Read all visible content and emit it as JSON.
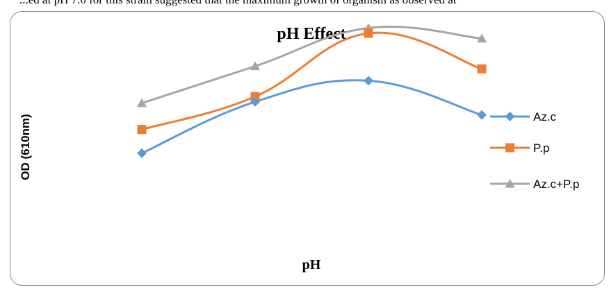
{
  "cut_text": "...ed at pH 7.0 for this strain suggested that the maximum growth of organism as observed at",
  "chart_data": {
    "type": "line",
    "title": "pH Effect",
    "xlabel": "pH",
    "ylabel": "OD (610nm)",
    "categories": [
      "",
      "",
      "",
      ""
    ],
    "grid": false,
    "legend": "right",
    "smooth": true,
    "ylim": [
      0,
      1
    ],
    "series": [
      {
        "name": "Az.c",
        "values": [
          0.445,
          0.64,
          0.72,
          0.59
        ],
        "color": "#5b9bd5",
        "marker": "diamond"
      },
      {
        "name": "P.p",
        "values": [
          0.535,
          0.66,
          0.9,
          0.765
        ],
        "color": "#ed7d31",
        "marker": "square"
      },
      {
        "name": "Az.c+P.p",
        "values": [
          0.635,
          0.775,
          0.92,
          0.88
        ],
        "color": "#a5a5a5",
        "marker": "triangle"
      }
    ]
  }
}
